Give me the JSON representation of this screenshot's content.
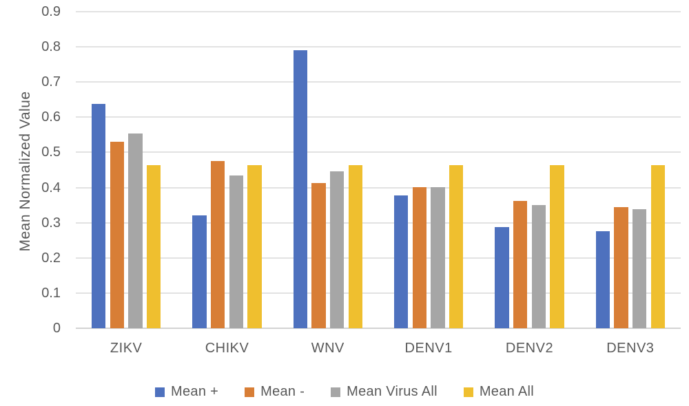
{
  "chart_data": {
    "type": "bar",
    "title": "",
    "xlabel": "",
    "ylabel": "Mean Normalized Value",
    "ylim": [
      0,
      0.9
    ],
    "y_ticks": [
      "0",
      "0.1",
      "0.2",
      "0.3",
      "0.4",
      "0.5",
      "0.6",
      "0.7",
      "0.8",
      "0.9"
    ],
    "grid": true,
    "legend_position": "bottom-center",
    "categories": [
      "ZIKV",
      "CHIKV",
      "WNV",
      "DENV1",
      "DENV2",
      "DENV3"
    ],
    "series": [
      {
        "name": "Mean +",
        "color": "#4e71be",
        "values": [
          0.638,
          0.321,
          0.79,
          0.378,
          0.287,
          0.276
        ]
      },
      {
        "name": "Mean -",
        "color": "#d87e36",
        "values": [
          0.53,
          0.475,
          0.412,
          0.401,
          0.361,
          0.344
        ]
      },
      {
        "name": "Mean Virus All",
        "color": "#a6a6a6",
        "values": [
          0.553,
          0.435,
          0.447,
          0.401,
          0.35,
          0.338
        ]
      },
      {
        "name": "Mean All",
        "color": "#efbf2f",
        "values": [
          0.463,
          0.463,
          0.463,
          0.463,
          0.463,
          0.463
        ]
      }
    ]
  },
  "styles": {
    "background": "#ffffff",
    "text_color": "#595959",
    "gridline_color": "#e2e2e2",
    "axis_line_color": "#d2d2d2"
  }
}
